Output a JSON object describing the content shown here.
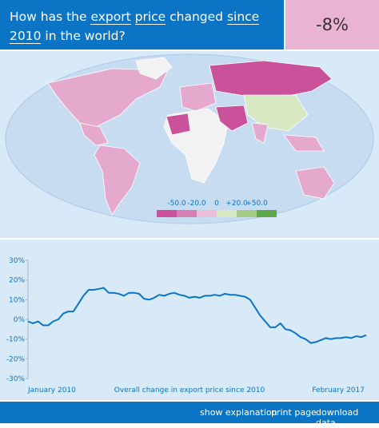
{
  "header": {
    "question_parts": [
      "How has the",
      "export",
      "price",
      "changed",
      "since 2010",
      "in the world?"
    ],
    "kpi": "-8%"
  },
  "map_legend": {
    "labels": [
      "-50.0",
      "-20.0",
      "0",
      "+20.0",
      "+50.0"
    ]
  },
  "chart_data": {
    "type": "line",
    "x_label": "Overall change in export price since 2010",
    "categories": [
      "January 2010",
      null,
      null,
      null,
      null,
      null,
      null,
      null,
      null,
      null,
      null,
      null,
      null,
      null,
      null,
      null,
      null,
      null,
      null,
      null,
      null,
      null,
      null,
      null,
      null,
      null,
      null,
      null,
      null,
      null,
      null,
      null,
      null,
      null,
      null,
      null,
      null,
      null,
      null,
      null,
      null,
      null,
      null,
      null,
      null,
      null,
      null,
      null,
      null,
      null,
      null,
      null,
      null,
      null,
      null,
      null,
      null,
      null,
      null,
      null,
      null,
      null,
      null,
      null,
      null,
      null,
      null,
      "February 2017"
    ],
    "values": [
      -1,
      -2,
      -1,
      -3,
      -3,
      -1,
      0,
      3,
      4,
      4,
      8,
      12,
      15,
      15,
      15.5,
      16,
      13.5,
      13.5,
      13,
      12,
      13.5,
      13.5,
      13,
      10.5,
      10,
      11,
      12.5,
      12,
      13,
      13.5,
      12.5,
      12,
      11,
      11.5,
      11,
      12,
      12,
      12.5,
      12,
      13,
      12.5,
      12.5,
      12,
      11.5,
      10,
      6,
      2,
      -1,
      -4,
      -4,
      -2,
      -5,
      -5.5,
      -7,
      -9,
      -10,
      -12,
      -11.5,
      -10.5,
      -9.5,
      -10,
      -9.5,
      -9.5,
      -9,
      -9.5,
      -8.5,
      -9,
      -8
    ],
    "color": "#0b74c4",
    "ylim": [
      -30,
      30
    ],
    "yticks": [
      {
        "value": 30,
        "label": "30%"
      },
      {
        "value": 20,
        "label": "20%"
      },
      {
        "value": 10,
        "label": "10%"
      },
      {
        "value": 0,
        "label": "0%"
      },
      {
        "value": -10,
        "label": "-10%"
      },
      {
        "value": -20,
        "label": "-20%"
      },
      {
        "value": -30,
        "label": "-30%"
      }
    ],
    "grid": false
  },
  "footer": {
    "links": [
      "show explanation",
      "print page",
      "download data"
    ]
  }
}
